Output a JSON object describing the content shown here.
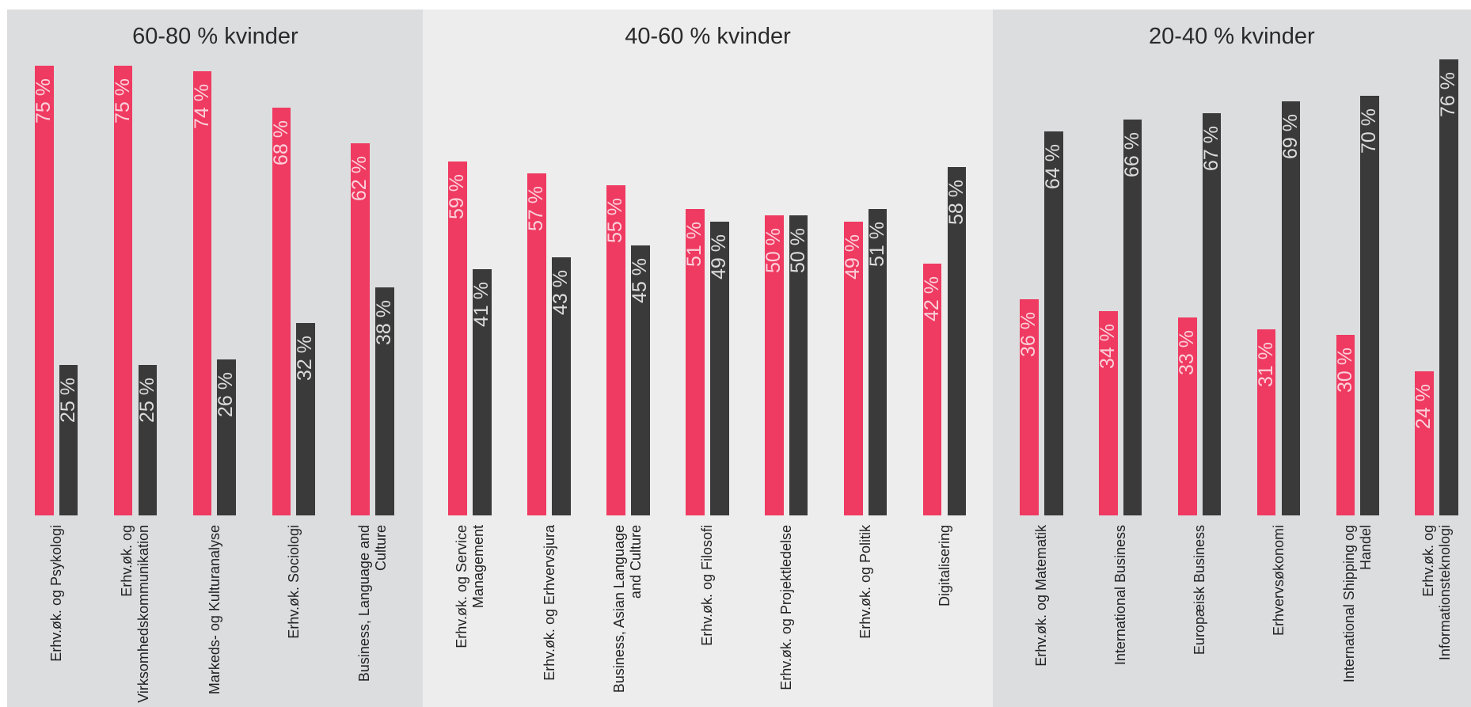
{
  "chart_data": [
    {
      "type": "bar",
      "title": "60-80 % kvinder",
      "categories": [
        "Erhv.øk. og Psykologi",
        "Erhv.øk. og Virksomhedskommunikation",
        "Markeds- og Kulturanalyse",
        "Erhv.øk. Sociologi",
        "Business, Language and Culture"
      ],
      "series": [
        {
          "color": "#ef3a61",
          "values": [
            75,
            75,
            74,
            68,
            62
          ],
          "value_labels": [
            "75 %",
            "75 %",
            "74 %",
            "68 %",
            "62 %"
          ]
        },
        {
          "color": "#3a3a3a",
          "values": [
            25,
            25,
            26,
            32,
            38
          ],
          "value_labels": [
            "25 %",
            "25 %",
            "26 %",
            "32 %",
            "38 %"
          ]
        }
      ]
    },
    {
      "type": "bar",
      "title": "40-60 % kvinder",
      "categories": [
        "Erhv.øk. og Service Management",
        "Erhv.øk. og Erhvervsjura",
        "Business, Asian Language and Culture",
        "Erhv.øk. og Filosofi",
        "Erhv.øk. og Projektledelse",
        "Erhv.øk. og Politik",
        "Digitalisering"
      ],
      "series": [
        {
          "color": "#ef3a61",
          "values": [
            59,
            57,
            55,
            51,
            50,
            49,
            42
          ],
          "value_labels": [
            "59 %",
            "57 %",
            "55 %",
            "51 %",
            "50 %",
            "49 %",
            "42 %"
          ]
        },
        {
          "color": "#3a3a3a",
          "values": [
            41,
            43,
            45,
            49,
            50,
            51,
            58
          ],
          "value_labels": [
            "41 %",
            "43 %",
            "45 %",
            "49 %",
            "50 %",
            "51 %",
            "58 %"
          ]
        }
      ]
    },
    {
      "type": "bar",
      "title": "20-40 % kvinder",
      "categories": [
        "Erhv.øk. og Matematik",
        "International Business",
        "Europæisk Business",
        "Erhvervsøkonomi",
        "International Shipping og Handel",
        "Erhv.øk. og Informationsteknologi"
      ],
      "series": [
        {
          "color": "#ef3a61",
          "values": [
            36,
            34,
            33,
            31,
            30,
            24
          ],
          "value_labels": [
            "36 %",
            "34 %",
            "33 %",
            "31 %",
            "30 %",
            "24 %"
          ]
        },
        {
          "color": "#3a3a3a",
          "values": [
            64,
            66,
            67,
            69,
            70,
            76
          ],
          "value_labels": [
            "64 %",
            "66 %",
            "67 %",
            "69 %",
            "70 %",
            "76 %"
          ]
        }
      ]
    }
  ]
}
